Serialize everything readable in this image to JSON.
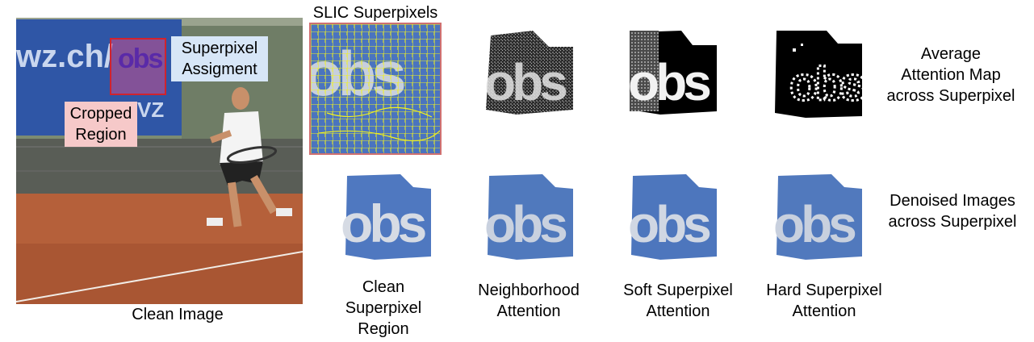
{
  "labels": {
    "slic_title": "SLIC Superpixels",
    "superpixel_assignment": [
      "Superpixel",
      "Assigment"
    ],
    "cropped_region": [
      "Cropped",
      "Region"
    ],
    "clean_image": "Clean Image",
    "avg_attention": [
      "Average",
      "Attention Map",
      "across Superpixel"
    ],
    "denoised": [
      "Denoised Images",
      "across Superpixel"
    ],
    "clean_superpixel": [
      "Clean",
      "Superpixel",
      "Region"
    ],
    "neighborhood": [
      "Neighborhood",
      "Attention"
    ],
    "soft": [
      "Soft Superpixel",
      "Attention"
    ],
    "hard": [
      "Hard Superpixel",
      "Attention"
    ]
  },
  "banner_text": {
    "url": "wz.ch/",
    "letters": "obs",
    "small": "VZ"
  },
  "colors": {
    "banner_blue": "#2f56a6",
    "court_clay": "#b5603a",
    "crop_border": "#d0232d",
    "crop_fill": "#c25a8a",
    "purple": "#5a2aa8",
    "assign_box": "#d7e6f7",
    "cropped_box": "#f6c9c9",
    "slic_yellow": "#f2f21c",
    "patch_blue": "#4f78c0"
  }
}
